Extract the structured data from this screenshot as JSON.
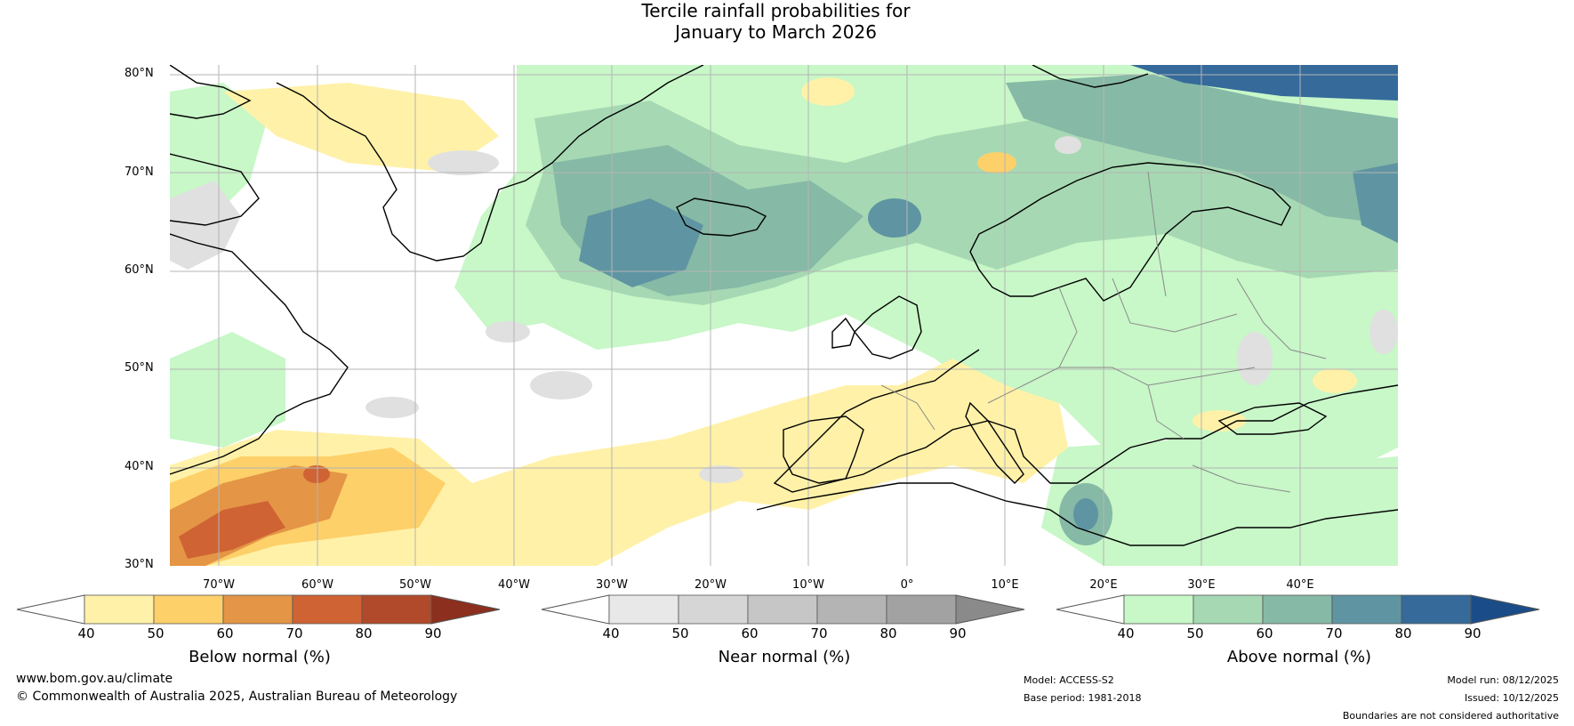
{
  "title": {
    "line1": "Tercile rainfall probabilities for",
    "line2": "January to March 2026"
  },
  "map": {
    "projection": "equirectangular",
    "extent": {
      "lon_min": -75,
      "lon_max": 50,
      "lat_min": 30,
      "lat_max": 81
    },
    "lat_labels": [
      "80°N",
      "70°N",
      "60°N",
      "50°N",
      "40°N",
      "30°N"
    ],
    "lon_labels": [
      "70°W",
      "60°W",
      "50°W",
      "40°W",
      "30°W",
      "20°W",
      "10°W",
      "0°",
      "10°E",
      "20°E",
      "30°E",
      "40°E"
    ]
  },
  "colorbars": [
    {
      "label": "Below normal (%)",
      "ticks": [
        "40",
        "50",
        "60",
        "70",
        "80",
        "90"
      ],
      "colors": [
        "#fff1a8",
        "#fdd06a",
        "#e49545",
        "#cf6334",
        "#b14a2a"
      ],
      "under_color": "#ffffff",
      "over_color": "#8c2f1e"
    },
    {
      "label": "Near normal (%)",
      "ticks": [
        "40",
        "50",
        "60",
        "70",
        "80",
        "90"
      ],
      "colors": [
        "#e8e8e8",
        "#d6d6d6",
        "#c6c6c6",
        "#b4b4b4",
        "#a2a2a2"
      ],
      "under_color": "#ffffff",
      "over_color": "#8a8a8a"
    },
    {
      "label": "Above normal (%)",
      "ticks": [
        "40",
        "50",
        "60",
        "70",
        "80",
        "90"
      ],
      "colors": [
        "#c8f7c8",
        "#a6d9b3",
        "#86b9a6",
        "#5f95a2",
        "#356a9a"
      ],
      "under_color": "#ffffff",
      "over_color": "#1a4d88"
    }
  ],
  "footer": {
    "website": "www.bom.gov.au/climate",
    "copyright": "© Commonwealth of Australia 2025, Australian Bureau of Meteorology",
    "model": "Model: ACCESS-S2",
    "base_period": "Base period: 1981-2018",
    "model_run": "Model run: 08/12/2025",
    "issued": "Issued: 10/12/2025",
    "disclaimer": "Boundaries are not considered authoritative"
  }
}
